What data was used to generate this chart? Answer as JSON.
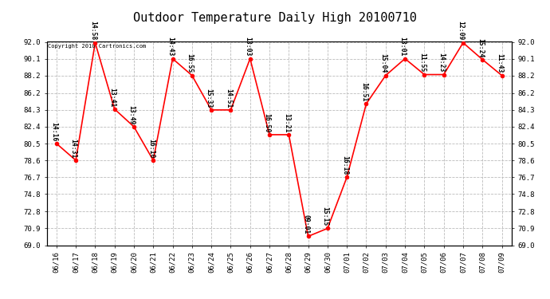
{
  "title": "Outdoor Temperature Daily High 20100710",
  "copyright": "Copyright 2010 Cartronics.com",
  "x_labels": [
    "06/16",
    "06/17",
    "06/18",
    "06/19",
    "06/20",
    "06/21",
    "06/22",
    "06/23",
    "06/24",
    "06/25",
    "06/26",
    "06/27",
    "06/28",
    "06/29",
    "06/30",
    "07/01",
    "07/02",
    "07/03",
    "07/04",
    "07/05",
    "07/06",
    "07/07",
    "07/08",
    "07/09"
  ],
  "y_values": [
    80.5,
    78.6,
    91.9,
    84.4,
    82.4,
    78.6,
    90.1,
    88.2,
    84.3,
    84.3,
    90.1,
    81.5,
    81.5,
    70.0,
    70.9,
    76.7,
    85.0,
    88.2,
    90.1,
    88.3,
    88.3,
    91.9,
    90.0,
    88.2
  ],
  "time_labels": [
    "14:16",
    "14:31",
    "14:58",
    "13:41",
    "13:49",
    "16:10",
    "14:43",
    "16:55",
    "15:33",
    "14:51",
    "13:03",
    "16:50",
    "13:21",
    "09:01",
    "15:15",
    "16:18",
    "16:51",
    "15:04",
    "13:01",
    "11:55",
    "14:23",
    "12:09",
    "15:24",
    "11:43"
  ],
  "line_color": "#ff0000",
  "marker_color": "#ff0000",
  "bg_color": "#ffffff",
  "grid_color": "#bbbbbb",
  "ylim_min": 69.0,
  "ylim_max": 92.0,
  "yticks": [
    69.0,
    70.9,
    72.8,
    74.8,
    76.7,
    78.6,
    80.5,
    82.4,
    84.3,
    86.2,
    88.2,
    90.1,
    92.0
  ],
  "title_fontsize": 11,
  "tick_fontsize": 6.5,
  "anno_fontsize": 5.8
}
